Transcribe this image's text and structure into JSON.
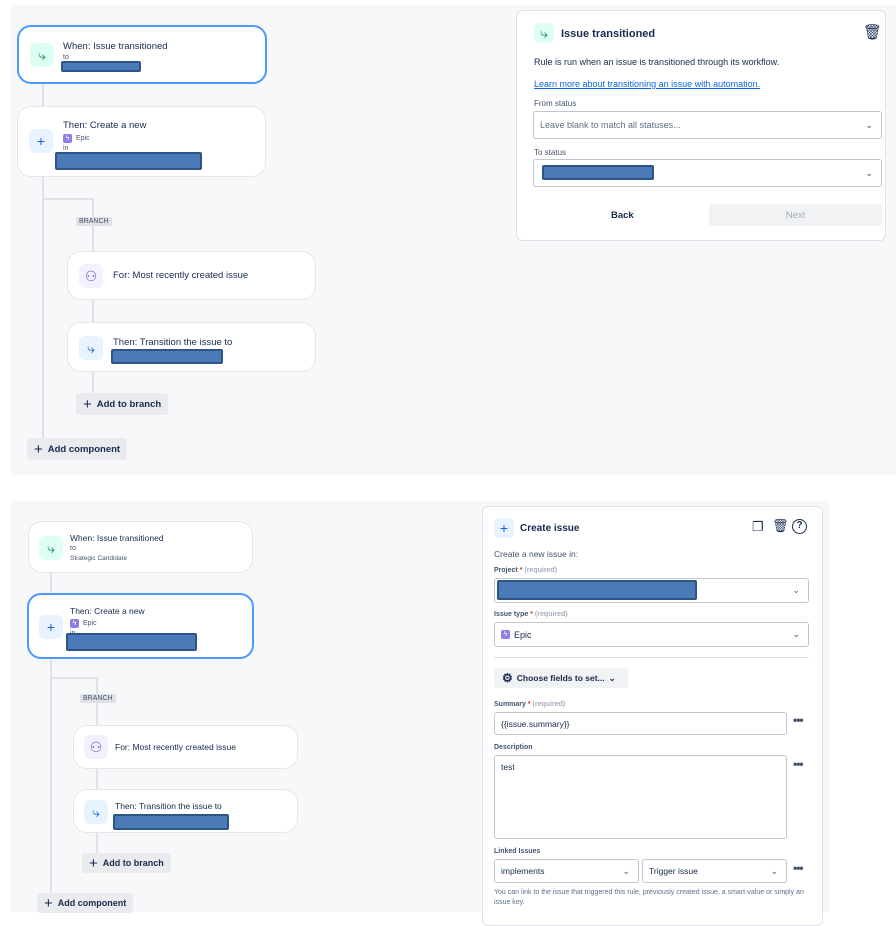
{
  "top": {
    "trigger": {
      "title": "When: Issue transitioned",
      "sub": "to"
    },
    "action": {
      "title": "Then: Create a new",
      "type": "Epic",
      "sub": "in"
    },
    "branch_label": "BRANCH",
    "branch_for": "For: Most recently created issue",
    "branch_then": "Then: Transition the issue to",
    "add_to_branch": "Add to branch",
    "add_component": "Add component",
    "panel": {
      "title": "Issue transitioned",
      "desc": "Rule is run when an issue is transitioned through its workflow.",
      "link": "Learn more about transitioning an issue with automation.",
      "from_label": "From status",
      "from_placeholder": "Leave blank to match all statuses...",
      "to_label": "To status",
      "back": "Back",
      "next": "Next"
    }
  },
  "bottom": {
    "trigger": {
      "title": "When: Issue transitioned",
      "sub": "to",
      "status": "Strategic Candidate"
    },
    "action": {
      "title": "Then: Create a new",
      "type": "Epic",
      "sub": "in"
    },
    "branch_label": "BRANCH",
    "branch_for": "For: Most recently created issue",
    "branch_then": "Then: Transition the issue to",
    "add_to_branch": "Add to branch",
    "add_component": "Add component",
    "panel": {
      "title": "Create issue",
      "intro": "Create a new issue in:",
      "project_label": "Project",
      "required_mark": "*",
      "required_text": "(required)",
      "issue_type_label": "Issue type",
      "issue_type_value": "Epic",
      "choose_fields": "Choose fields to set...",
      "summary_label": "Summary",
      "summary_value": "{{issue.summary}}",
      "description_label": "Description",
      "description_value": "test",
      "linked_label": "Linked Issues",
      "link_type": "implements",
      "link_target": "Trigger issue",
      "help": "You can link to the issue that triggered this rule, previously created issue, a smart-value or simply an issue key."
    }
  },
  "colors": {
    "selected_border": "#4c9aff",
    "redaction": "#4a7ab8",
    "link": "#0c66e4"
  }
}
